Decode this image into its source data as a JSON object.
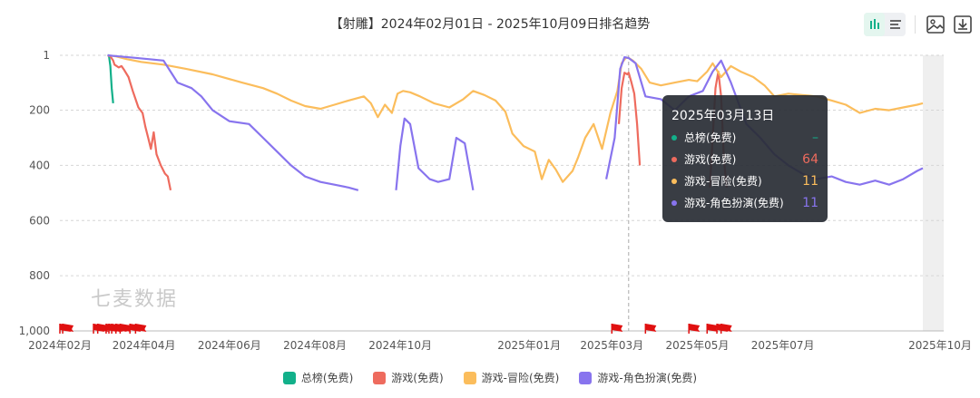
{
  "toolbar": {
    "icons": [
      "bar-chart-icon",
      "list-icon",
      "image-icon",
      "download-icon"
    ]
  },
  "watermark": "七麦数据",
  "chart_data": {
    "type": "line",
    "title": "【射雕】2024年02月01日 - 2025年10月09日排名趋势",
    "y_inverted": true,
    "ylim": [
      1,
      1000
    ],
    "y_ticks": [
      "1",
      "200",
      "400",
      "600",
      "800",
      "1,000"
    ],
    "x_ticks": [
      "2024年02月",
      "2024年04月",
      "2024年06月",
      "2024年08月",
      "2024年10月",
      "2025年01月",
      "2025年03月",
      "2025年05月",
      "2025年07月",
      "2025年10月"
    ],
    "grid": true,
    "legend_position": "bottom",
    "series": [
      {
        "name": "总榜(免费)",
        "color": "#12b08a",
        "points": [
          [
            "2024-03-06",
            1
          ],
          [
            "2024-03-07",
            1
          ],
          [
            "2024-03-08",
            40
          ],
          [
            "2024-03-09",
            120
          ],
          [
            "2024-03-10",
            175
          ]
        ]
      },
      {
        "name": "游戏(免费)",
        "color": "#ee6b5e",
        "points": [
          [
            "2024-03-06",
            1
          ],
          [
            "2024-03-08",
            5
          ],
          [
            "2024-03-10",
            20
          ],
          [
            "2024-03-11",
            35
          ],
          [
            "2024-03-14",
            45
          ],
          [
            "2024-03-16",
            40
          ],
          [
            "2024-03-18",
            55
          ],
          [
            "2024-03-21",
            80
          ],
          [
            "2024-03-24",
            130
          ],
          [
            "2024-03-26",
            160
          ],
          [
            "2024-03-28",
            190
          ],
          [
            "2024-03-31",
            210
          ],
          [
            "2024-04-02",
            260
          ],
          [
            "2024-04-04",
            300
          ],
          [
            "2024-04-06",
            340
          ],
          [
            "2024-04-08",
            280
          ],
          [
            "2024-04-10",
            360
          ],
          [
            "2024-04-13",
            400
          ],
          [
            "2024-04-16",
            430
          ],
          [
            "2024-04-18",
            440
          ],
          [
            "2024-04-20",
            490
          ],
          null,
          [
            "2025-03-06",
            250
          ],
          [
            "2025-03-08",
            120
          ],
          [
            "2025-03-10",
            64
          ],
          [
            "2025-03-12",
            70
          ],
          [
            "2025-03-13",
            64
          ],
          [
            "2025-03-15",
            100
          ],
          [
            "2025-03-17",
            140
          ],
          [
            "2025-03-19",
            250
          ],
          [
            "2025-03-21",
            400
          ],
          null,
          [
            "2025-05-10",
            480
          ],
          [
            "2025-05-12",
            300
          ],
          [
            "2025-05-14",
            120
          ],
          [
            "2025-05-16",
            60
          ],
          [
            "2025-05-18",
            150
          ],
          [
            "2025-05-20",
            380
          ],
          [
            "2025-05-22",
            480
          ]
        ]
      },
      {
        "name": "游戏-冒险(免费)",
        "color": "#fbbd5c",
        "points": [
          [
            "2024-03-06",
            1
          ],
          [
            "2024-03-12",
            5
          ],
          [
            "2024-03-20",
            15
          ],
          [
            "2024-03-30",
            25
          ],
          [
            "2024-04-15",
            35
          ],
          [
            "2024-05-01",
            50
          ],
          [
            "2024-05-20",
            70
          ],
          [
            "2024-06-10",
            100
          ],
          [
            "2024-06-25",
            120
          ],
          [
            "2024-07-05",
            140
          ],
          [
            "2024-07-15",
            165
          ],
          [
            "2024-07-25",
            185
          ],
          [
            "2024-08-05",
            195
          ],
          [
            "2024-08-15",
            180
          ],
          [
            "2024-08-25",
            165
          ],
          [
            "2024-09-05",
            150
          ],
          [
            "2024-09-10",
            175
          ],
          [
            "2024-09-15",
            225
          ],
          [
            "2024-09-20",
            180
          ],
          [
            "2024-09-25",
            210
          ],
          [
            "2024-09-29",
            140
          ],
          [
            "2024-10-03",
            130
          ],
          [
            "2024-10-08",
            135
          ],
          [
            "2024-10-15",
            150
          ],
          [
            "2024-10-25",
            175
          ],
          [
            "2024-11-05",
            190
          ],
          [
            "2024-11-15",
            160
          ],
          [
            "2024-11-22",
            130
          ],
          [
            "2024-11-30",
            145
          ],
          [
            "2024-12-08",
            165
          ],
          [
            "2024-12-15",
            205
          ],
          [
            "2024-12-20",
            285
          ],
          [
            "2024-12-28",
            330
          ],
          [
            "2025-01-05",
            350
          ],
          [
            "2025-01-10",
            450
          ],
          [
            "2025-01-15",
            380
          ],
          [
            "2025-01-20",
            415
          ],
          [
            "2025-01-25",
            460
          ],
          [
            "2025-02-01",
            420
          ],
          [
            "2025-02-05",
            370
          ],
          [
            "2025-02-10",
            300
          ],
          [
            "2025-02-16",
            250
          ],
          [
            "2025-02-22",
            340
          ],
          [
            "2025-02-28",
            210
          ],
          [
            "2025-03-05",
            130
          ],
          [
            "2025-03-08",
            30
          ],
          [
            "2025-03-11",
            10
          ],
          [
            "2025-03-13",
            11
          ],
          [
            "2025-03-16",
            20
          ],
          [
            "2025-03-22",
            50
          ],
          [
            "2025-03-28",
            100
          ],
          [
            "2025-04-05",
            110
          ],
          [
            "2025-04-15",
            100
          ],
          [
            "2025-04-25",
            90
          ],
          [
            "2025-05-01",
            95
          ],
          [
            "2025-05-08",
            60
          ],
          [
            "2025-05-12",
            30
          ],
          [
            "2025-05-18",
            80
          ],
          [
            "2025-05-25",
            40
          ],
          [
            "2025-06-01",
            60
          ],
          [
            "2025-06-10",
            80
          ],
          [
            "2025-06-18",
            110
          ],
          [
            "2025-06-25",
            150
          ],
          [
            "2025-07-05",
            140
          ],
          [
            "2025-07-15",
            145
          ],
          [
            "2025-07-25",
            150
          ],
          [
            "2025-08-05",
            165
          ],
          [
            "2025-08-15",
            180
          ],
          [
            "2025-08-25",
            210
          ],
          [
            "2025-09-05",
            195
          ],
          [
            "2025-09-15",
            200
          ],
          [
            "2025-09-25",
            190
          ],
          [
            "2025-10-05",
            180
          ],
          [
            "2025-10-09",
            175
          ]
        ]
      },
      {
        "name": "游戏-角色扮演(免费)",
        "color": "#8874ee",
        "points": [
          [
            "2024-03-06",
            1
          ],
          [
            "2024-03-14",
            5
          ],
          [
            "2024-03-25",
            10
          ],
          [
            "2024-04-05",
            15
          ],
          [
            "2024-04-15",
            20
          ],
          [
            "2024-04-25",
            100
          ],
          [
            "2024-05-05",
            120
          ],
          [
            "2024-05-12",
            150
          ],
          [
            "2024-05-20",
            200
          ],
          [
            "2024-06-01",
            240
          ],
          [
            "2024-06-15",
            250
          ],
          [
            "2024-06-25",
            300
          ],
          [
            "2024-07-05",
            350
          ],
          [
            "2024-07-15",
            400
          ],
          [
            "2024-07-25",
            440
          ],
          [
            "2024-08-05",
            460
          ],
          [
            "2024-08-15",
            470
          ],
          [
            "2024-08-25",
            480
          ],
          [
            "2024-09-01",
            490
          ],
          null,
          [
            "2024-09-28",
            490
          ],
          [
            "2024-10-01",
            330
          ],
          [
            "2024-10-04",
            230
          ],
          [
            "2024-10-08",
            250
          ],
          [
            "2024-10-14",
            410
          ],
          [
            "2024-10-22",
            450
          ],
          [
            "2024-10-28",
            460
          ],
          [
            "2024-11-05",
            450
          ],
          [
            "2024-11-10",
            300
          ],
          [
            "2024-11-16",
            320
          ],
          [
            "2024-11-22",
            490
          ],
          null,
          [
            "2025-02-25",
            450
          ],
          [
            "2025-03-03",
            300
          ],
          [
            "2025-03-07",
            50
          ],
          [
            "2025-03-10",
            8
          ],
          [
            "2025-03-13",
            11
          ],
          [
            "2025-03-18",
            30
          ],
          [
            "2025-03-25",
            150
          ],
          [
            "2025-04-05",
            160
          ],
          [
            "2025-04-15",
            200
          ],
          [
            "2025-04-25",
            150
          ],
          [
            "2025-05-05",
            130
          ],
          [
            "2025-05-12",
            60
          ],
          [
            "2025-05-18",
            20
          ],
          [
            "2025-05-25",
            100
          ],
          [
            "2025-06-05",
            250
          ],
          [
            "2025-06-15",
            300
          ],
          [
            "2025-06-25",
            360
          ],
          [
            "2025-07-05",
            400
          ],
          [
            "2025-07-15",
            430
          ],
          [
            "2025-07-25",
            450
          ],
          [
            "2025-08-05",
            440
          ],
          [
            "2025-08-15",
            460
          ],
          [
            "2025-08-25",
            470
          ],
          [
            "2025-09-05",
            455
          ],
          [
            "2025-09-15",
            470
          ],
          [
            "2025-09-25",
            450
          ],
          [
            "2025-10-05",
            420
          ],
          [
            "2025-10-09",
            410
          ]
        ]
      }
    ],
    "event_flags": [
      "2024-02-01",
      "2024-02-03",
      "2024-02-25",
      "2024-02-28",
      "2024-03-05",
      "2024-03-07",
      "2024-03-09",
      "2024-03-12",
      "2024-03-15",
      "2024-03-22",
      "2024-03-26",
      "2025-03-01",
      "2025-03-25",
      "2025-04-25",
      "2025-05-08",
      "2025-05-15",
      "2025-05-18"
    ],
    "tooltip": {
      "date": "2025年03月13日",
      "rows": [
        {
          "name": "总榜(免费)",
          "value": "–",
          "color": "#12b08a"
        },
        {
          "name": "游戏(免费)",
          "value": "64",
          "color": "#ee6b5e"
        },
        {
          "name": "游戏-冒险(免费)",
          "value": "11",
          "color": "#fbbd5c"
        },
        {
          "name": "游戏-角色扮演(免费)",
          "value": "11",
          "color": "#8874ee"
        }
      ]
    }
  }
}
